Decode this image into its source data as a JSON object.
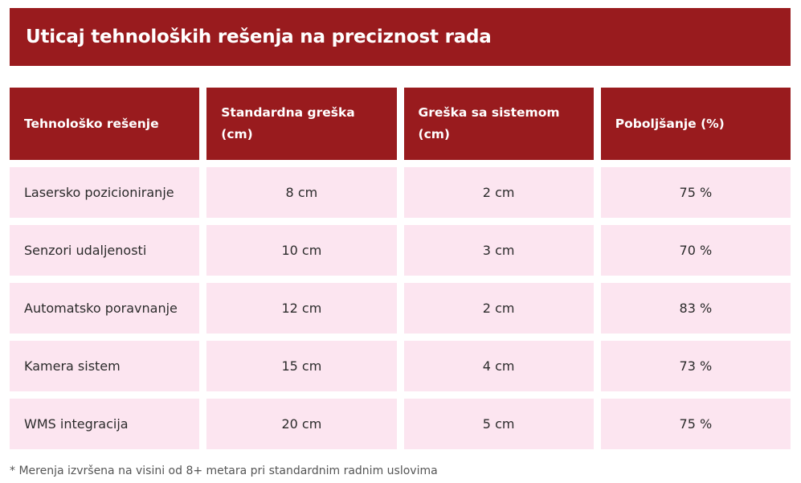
{
  "title": "Uticaj tehnoloških rešenja na preciznost rada",
  "table": {
    "headers": [
      "Tehnološko rešenje",
      "Standardna greška (cm)",
      "Greška sa sistemom (cm)",
      "Poboljšanje (%)"
    ],
    "rows": [
      [
        "Lasersko pozicioniranje",
        "8 cm",
        "2 cm",
        "75 %"
      ],
      [
        "Senzori udaljenosti",
        "10 cm",
        "3 cm",
        "70 %"
      ],
      [
        "Automatsko poravnanje",
        "12 cm",
        "2 cm",
        "83 %"
      ],
      [
        "Kamera sistem",
        "15 cm",
        "4 cm",
        "73 %"
      ],
      [
        "WMS integracija",
        "20 cm",
        "5 cm",
        "75 %"
      ]
    ]
  },
  "footnote": "* Merenja izvršena na visini od 8+ metara pri standardnim radnim uslovima",
  "colors": {
    "header_background": "#991b1e",
    "cell_background": "#fce5f0",
    "header_text": "#ffffff"
  }
}
